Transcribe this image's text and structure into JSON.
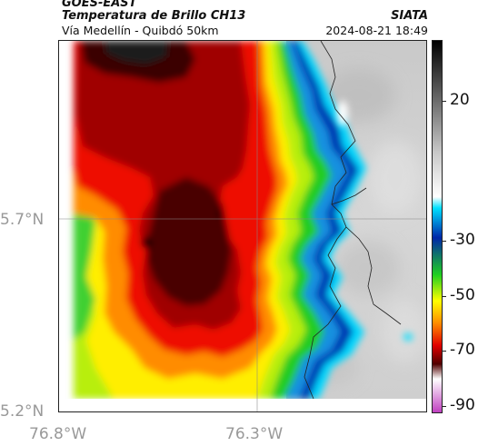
{
  "header": {
    "satellite": "GOES-EAST",
    "product": "Temperatura de Brillo CH13",
    "region": "Vía Medellín - Quibdó 50km",
    "source": "SIATA",
    "datetime": "2024-08-21 18:49"
  },
  "axes": {
    "lat_labels": [
      "5.7°N",
      "5.2°N"
    ],
    "lon_labels": [
      "76.8°W",
      "76.3°W"
    ]
  },
  "colorbar": {
    "labels": [
      "20",
      "-30",
      "-50",
      "-70",
      "-90"
    ],
    "colors": {
      "warm_top": "#000000",
      "gray": "#c8c8c8",
      "white": "#ffffff",
      "cyan": "#00e0ff",
      "blue": "#0026a8",
      "green": "#20d020",
      "yellow": "#ffff00",
      "orange": "#ff8c00",
      "red": "#e00000",
      "darkred": "#500000",
      "magenta": "#c040c0"
    }
  }
}
